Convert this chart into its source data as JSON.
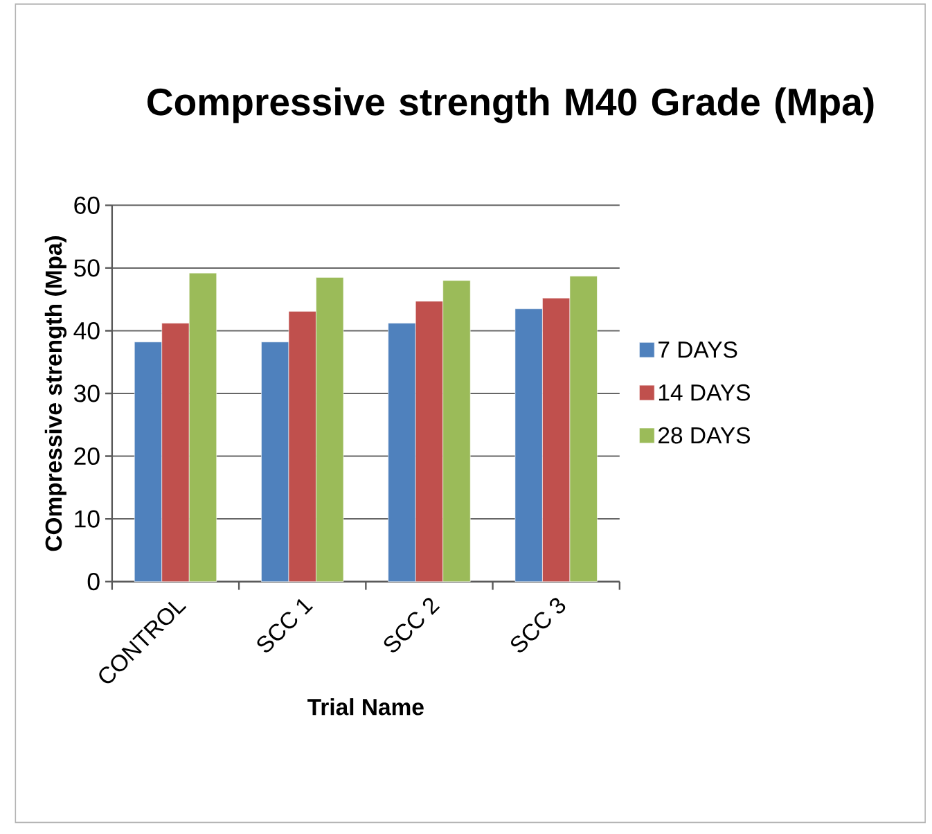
{
  "chart_data": {
    "type": "bar",
    "title": "Compressive strength M40 Grade (Mpa)",
    "xlabel": "Trial Name",
    "ylabel": "COmpressive strength (Mpa)",
    "categories": [
      "CONTROL",
      "SCC 1",
      "SCC 2",
      "SCC 3"
    ],
    "series": [
      {
        "name": "7 DAYS",
        "color": "#4f81bd",
        "values": [
          38.2,
          38.2,
          41.2,
          43.5
        ]
      },
      {
        "name": "14 DAYS",
        "color": "#c0504d",
        "values": [
          41.2,
          43.1,
          44.7,
          45.2
        ]
      },
      {
        "name": "28 DAYS",
        "color": "#9bbb59",
        "values": [
          49.2,
          48.5,
          48.0,
          48.7
        ]
      }
    ],
    "ylim": [
      0,
      60
    ],
    "yticks": [
      0,
      10,
      20,
      30,
      40,
      50,
      60
    ],
    "grid": "y",
    "legend": "right"
  }
}
